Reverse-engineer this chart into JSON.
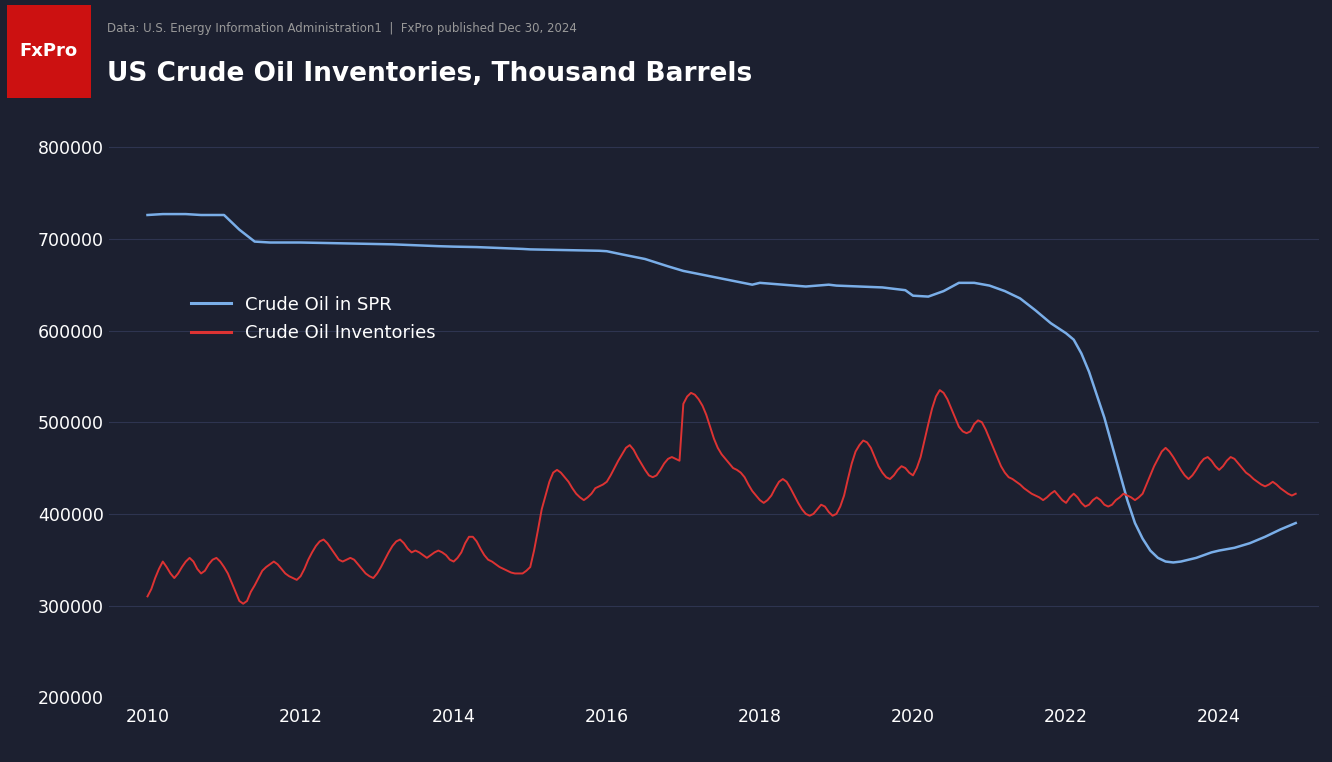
{
  "title": "US Crude Oil Inventories, Thousand Barrels",
  "subtitle": "Data: U.S. Energy Information Administration1  |  FxPro published Dec 30, 2024",
  "logo_text": "FxPro",
  "background_color": "#1c2030",
  "header_bg_color": "#252c3d",
  "logo_bg_color": "#cc1111",
  "text_color": "#ffffff",
  "subtitle_color": "#999999",
  "grid_color": "#2e3450",
  "spr_color": "#7aaee8",
  "inv_color": "#dd3333",
  "ylim": [
    200000,
    840000
  ],
  "yticks": [
    200000,
    300000,
    400000,
    500000,
    600000,
    700000,
    800000
  ],
  "xlim_start": 2009.5,
  "xlim_end": 2025.3,
  "xticks": [
    2010,
    2012,
    2014,
    2016,
    2018,
    2020,
    2022,
    2024
  ],
  "legend_spr": "Crude Oil in SPR",
  "legend_inv": "Crude Oil Inventories",
  "spr_data": [
    [
      2010.0,
      726000
    ],
    [
      2010.2,
      727000
    ],
    [
      2010.5,
      727000
    ],
    [
      2010.7,
      726000
    ],
    [
      2011.0,
      726000
    ],
    [
      2011.2,
      710000
    ],
    [
      2011.4,
      697000
    ],
    [
      2011.6,
      696000
    ],
    [
      2011.8,
      696000
    ],
    [
      2012.0,
      696000
    ],
    [
      2012.3,
      695500
    ],
    [
      2012.6,
      695000
    ],
    [
      2012.9,
      694500
    ],
    [
      2013.2,
      694000
    ],
    [
      2013.5,
      693000
    ],
    [
      2013.8,
      692000
    ],
    [
      2014.0,
      691500
    ],
    [
      2014.3,
      691000
    ],
    [
      2014.6,
      690000
    ],
    [
      2014.9,
      689000
    ],
    [
      2015.0,
      688500
    ],
    [
      2015.3,
      688000
    ],
    [
      2015.6,
      687500
    ],
    [
      2015.9,
      687000
    ],
    [
      2016.0,
      686500
    ],
    [
      2016.2,
      683000
    ],
    [
      2016.5,
      678000
    ],
    [
      2016.8,
      670000
    ],
    [
      2017.0,
      665000
    ],
    [
      2017.3,
      660000
    ],
    [
      2017.6,
      655000
    ],
    [
      2017.9,
      650000
    ],
    [
      2018.0,
      652000
    ],
    [
      2018.3,
      650000
    ],
    [
      2018.6,
      648000
    ],
    [
      2018.9,
      650000
    ],
    [
      2019.0,
      649000
    ],
    [
      2019.3,
      648000
    ],
    [
      2019.6,
      647000
    ],
    [
      2019.9,
      644000
    ],
    [
      2020.0,
      638000
    ],
    [
      2020.2,
      637000
    ],
    [
      2020.4,
      643000
    ],
    [
      2020.6,
      652000
    ],
    [
      2020.8,
      652000
    ],
    [
      2021.0,
      649000
    ],
    [
      2021.2,
      643000
    ],
    [
      2021.4,
      635000
    ],
    [
      2021.6,
      622000
    ],
    [
      2021.8,
      608000
    ],
    [
      2022.0,
      597000
    ],
    [
      2022.1,
      590000
    ],
    [
      2022.2,
      575000
    ],
    [
      2022.3,
      555000
    ],
    [
      2022.4,
      530000
    ],
    [
      2022.5,
      505000
    ],
    [
      2022.6,
      475000
    ],
    [
      2022.7,
      445000
    ],
    [
      2022.8,
      415000
    ],
    [
      2022.9,
      390000
    ],
    [
      2023.0,
      373000
    ],
    [
      2023.1,
      360000
    ],
    [
      2023.2,
      352000
    ],
    [
      2023.3,
      348000
    ],
    [
      2023.4,
      347000
    ],
    [
      2023.5,
      348000
    ],
    [
      2023.6,
      350000
    ],
    [
      2023.7,
      352000
    ],
    [
      2023.8,
      355000
    ],
    [
      2023.9,
      358000
    ],
    [
      2024.0,
      360000
    ],
    [
      2024.2,
      363000
    ],
    [
      2024.4,
      368000
    ],
    [
      2024.6,
      375000
    ],
    [
      2024.8,
      383000
    ],
    [
      2025.0,
      390000
    ]
  ],
  "inv_data": [
    [
      2010.0,
      310000
    ],
    [
      2010.05,
      318000
    ],
    [
      2010.1,
      330000
    ],
    [
      2010.15,
      340000
    ],
    [
      2010.2,
      348000
    ],
    [
      2010.25,
      342000
    ],
    [
      2010.3,
      335000
    ],
    [
      2010.35,
      330000
    ],
    [
      2010.4,
      335000
    ],
    [
      2010.45,
      342000
    ],
    [
      2010.5,
      348000
    ],
    [
      2010.55,
      352000
    ],
    [
      2010.6,
      348000
    ],
    [
      2010.65,
      340000
    ],
    [
      2010.7,
      335000
    ],
    [
      2010.75,
      338000
    ],
    [
      2010.8,
      345000
    ],
    [
      2010.85,
      350000
    ],
    [
      2010.9,
      352000
    ],
    [
      2010.95,
      348000
    ],
    [
      2011.0,
      342000
    ],
    [
      2011.05,
      335000
    ],
    [
      2011.1,
      325000
    ],
    [
      2011.15,
      315000
    ],
    [
      2011.2,
      305000
    ],
    [
      2011.25,
      302000
    ],
    [
      2011.3,
      305000
    ],
    [
      2011.35,
      315000
    ],
    [
      2011.4,
      322000
    ],
    [
      2011.45,
      330000
    ],
    [
      2011.5,
      338000
    ],
    [
      2011.55,
      342000
    ],
    [
      2011.6,
      345000
    ],
    [
      2011.65,
      348000
    ],
    [
      2011.7,
      345000
    ],
    [
      2011.75,
      340000
    ],
    [
      2011.8,
      335000
    ],
    [
      2011.85,
      332000
    ],
    [
      2011.9,
      330000
    ],
    [
      2011.95,
      328000
    ],
    [
      2012.0,
      332000
    ],
    [
      2012.05,
      340000
    ],
    [
      2012.1,
      350000
    ],
    [
      2012.15,
      358000
    ],
    [
      2012.2,
      365000
    ],
    [
      2012.25,
      370000
    ],
    [
      2012.3,
      372000
    ],
    [
      2012.35,
      368000
    ],
    [
      2012.4,
      362000
    ],
    [
      2012.45,
      356000
    ],
    [
      2012.5,
      350000
    ],
    [
      2012.55,
      348000
    ],
    [
      2012.6,
      350000
    ],
    [
      2012.65,
      352000
    ],
    [
      2012.7,
      350000
    ],
    [
      2012.75,
      345000
    ],
    [
      2012.8,
      340000
    ],
    [
      2012.85,
      335000
    ],
    [
      2012.9,
      332000
    ],
    [
      2012.95,
      330000
    ],
    [
      2013.0,
      335000
    ],
    [
      2013.05,
      342000
    ],
    [
      2013.1,
      350000
    ],
    [
      2013.15,
      358000
    ],
    [
      2013.2,
      365000
    ],
    [
      2013.25,
      370000
    ],
    [
      2013.3,
      372000
    ],
    [
      2013.35,
      368000
    ],
    [
      2013.4,
      362000
    ],
    [
      2013.45,
      358000
    ],
    [
      2013.5,
      360000
    ],
    [
      2013.55,
      358000
    ],
    [
      2013.6,
      355000
    ],
    [
      2013.65,
      352000
    ],
    [
      2013.7,
      355000
    ],
    [
      2013.75,
      358000
    ],
    [
      2013.8,
      360000
    ],
    [
      2013.85,
      358000
    ],
    [
      2013.9,
      355000
    ],
    [
      2013.95,
      350000
    ],
    [
      2014.0,
      348000
    ],
    [
      2014.05,
      352000
    ],
    [
      2014.1,
      358000
    ],
    [
      2014.15,
      368000
    ],
    [
      2014.2,
      375000
    ],
    [
      2014.25,
      375000
    ],
    [
      2014.3,
      370000
    ],
    [
      2014.35,
      362000
    ],
    [
      2014.4,
      355000
    ],
    [
      2014.45,
      350000
    ],
    [
      2014.5,
      348000
    ],
    [
      2014.55,
      345000
    ],
    [
      2014.6,
      342000
    ],
    [
      2014.65,
      340000
    ],
    [
      2014.7,
      338000
    ],
    [
      2014.75,
      336000
    ],
    [
      2014.8,
      335000
    ],
    [
      2014.85,
      335000
    ],
    [
      2014.9,
      335000
    ],
    [
      2014.95,
      338000
    ],
    [
      2015.0,
      342000
    ],
    [
      2015.05,
      360000
    ],
    [
      2015.1,
      382000
    ],
    [
      2015.15,
      405000
    ],
    [
      2015.2,
      420000
    ],
    [
      2015.25,
      435000
    ],
    [
      2015.3,
      445000
    ],
    [
      2015.35,
      448000
    ],
    [
      2015.4,
      445000
    ],
    [
      2015.45,
      440000
    ],
    [
      2015.5,
      435000
    ],
    [
      2015.55,
      428000
    ],
    [
      2015.6,
      422000
    ],
    [
      2015.65,
      418000
    ],
    [
      2015.7,
      415000
    ],
    [
      2015.75,
      418000
    ],
    [
      2015.8,
      422000
    ],
    [
      2015.85,
      428000
    ],
    [
      2015.9,
      430000
    ],
    [
      2015.95,
      432000
    ],
    [
      2016.0,
      435000
    ],
    [
      2016.05,
      442000
    ],
    [
      2016.1,
      450000
    ],
    [
      2016.15,
      458000
    ],
    [
      2016.2,
      465000
    ],
    [
      2016.25,
      472000
    ],
    [
      2016.3,
      475000
    ],
    [
      2016.35,
      470000
    ],
    [
      2016.4,
      462000
    ],
    [
      2016.45,
      455000
    ],
    [
      2016.5,
      448000
    ],
    [
      2016.55,
      442000
    ],
    [
      2016.6,
      440000
    ],
    [
      2016.65,
      442000
    ],
    [
      2016.7,
      448000
    ],
    [
      2016.75,
      455000
    ],
    [
      2016.8,
      460000
    ],
    [
      2016.85,
      462000
    ],
    [
      2016.9,
      460000
    ],
    [
      2016.95,
      458000
    ],
    [
      2017.0,
      520000
    ],
    [
      2017.05,
      528000
    ],
    [
      2017.1,
      532000
    ],
    [
      2017.15,
      530000
    ],
    [
      2017.2,
      525000
    ],
    [
      2017.25,
      518000
    ],
    [
      2017.3,
      508000
    ],
    [
      2017.35,
      495000
    ],
    [
      2017.4,
      482000
    ],
    [
      2017.45,
      472000
    ],
    [
      2017.5,
      465000
    ],
    [
      2017.55,
      460000
    ],
    [
      2017.6,
      455000
    ],
    [
      2017.65,
      450000
    ],
    [
      2017.7,
      448000
    ],
    [
      2017.75,
      445000
    ],
    [
      2017.8,
      440000
    ],
    [
      2017.85,
      432000
    ],
    [
      2017.9,
      425000
    ],
    [
      2017.95,
      420000
    ],
    [
      2018.0,
      415000
    ],
    [
      2018.05,
      412000
    ],
    [
      2018.1,
      415000
    ],
    [
      2018.15,
      420000
    ],
    [
      2018.2,
      428000
    ],
    [
      2018.25,
      435000
    ],
    [
      2018.3,
      438000
    ],
    [
      2018.35,
      435000
    ],
    [
      2018.4,
      428000
    ],
    [
      2018.45,
      420000
    ],
    [
      2018.5,
      412000
    ],
    [
      2018.55,
      405000
    ],
    [
      2018.6,
      400000
    ],
    [
      2018.65,
      398000
    ],
    [
      2018.7,
      400000
    ],
    [
      2018.75,
      405000
    ],
    [
      2018.8,
      410000
    ],
    [
      2018.85,
      408000
    ],
    [
      2018.9,
      402000
    ],
    [
      2018.95,
      398000
    ],
    [
      2019.0,
      400000
    ],
    [
      2019.05,
      408000
    ],
    [
      2019.1,
      420000
    ],
    [
      2019.15,
      438000
    ],
    [
      2019.2,
      455000
    ],
    [
      2019.25,
      468000
    ],
    [
      2019.3,
      475000
    ],
    [
      2019.35,
      480000
    ],
    [
      2019.4,
      478000
    ],
    [
      2019.45,
      472000
    ],
    [
      2019.5,
      462000
    ],
    [
      2019.55,
      452000
    ],
    [
      2019.6,
      445000
    ],
    [
      2019.65,
      440000
    ],
    [
      2019.7,
      438000
    ],
    [
      2019.75,
      442000
    ],
    [
      2019.8,
      448000
    ],
    [
      2019.85,
      452000
    ],
    [
      2019.9,
      450000
    ],
    [
      2019.95,
      445000
    ],
    [
      2020.0,
      442000
    ],
    [
      2020.05,
      450000
    ],
    [
      2020.1,
      462000
    ],
    [
      2020.15,
      480000
    ],
    [
      2020.2,
      498000
    ],
    [
      2020.25,
      515000
    ],
    [
      2020.3,
      528000
    ],
    [
      2020.35,
      535000
    ],
    [
      2020.4,
      532000
    ],
    [
      2020.45,
      525000
    ],
    [
      2020.5,
      515000
    ],
    [
      2020.55,
      505000
    ],
    [
      2020.6,
      495000
    ],
    [
      2020.65,
      490000
    ],
    [
      2020.7,
      488000
    ],
    [
      2020.75,
      490000
    ],
    [
      2020.8,
      498000
    ],
    [
      2020.85,
      502000
    ],
    [
      2020.9,
      500000
    ],
    [
      2020.95,
      492000
    ],
    [
      2021.0,
      482000
    ],
    [
      2021.05,
      472000
    ],
    [
      2021.1,
      462000
    ],
    [
      2021.15,
      452000
    ],
    [
      2021.2,
      445000
    ],
    [
      2021.25,
      440000
    ],
    [
      2021.3,
      438000
    ],
    [
      2021.35,
      435000
    ],
    [
      2021.4,
      432000
    ],
    [
      2021.45,
      428000
    ],
    [
      2021.5,
      425000
    ],
    [
      2021.55,
      422000
    ],
    [
      2021.6,
      420000
    ],
    [
      2021.65,
      418000
    ],
    [
      2021.7,
      415000
    ],
    [
      2021.75,
      418000
    ],
    [
      2021.8,
      422000
    ],
    [
      2021.85,
      425000
    ],
    [
      2021.9,
      420000
    ],
    [
      2021.95,
      415000
    ],
    [
      2022.0,
      412000
    ],
    [
      2022.05,
      418000
    ],
    [
      2022.1,
      422000
    ],
    [
      2022.15,
      418000
    ],
    [
      2022.2,
      412000
    ],
    [
      2022.25,
      408000
    ],
    [
      2022.3,
      410000
    ],
    [
      2022.35,
      415000
    ],
    [
      2022.4,
      418000
    ],
    [
      2022.45,
      415000
    ],
    [
      2022.5,
      410000
    ],
    [
      2022.55,
      408000
    ],
    [
      2022.6,
      410000
    ],
    [
      2022.65,
      415000
    ],
    [
      2022.7,
      418000
    ],
    [
      2022.75,
      422000
    ],
    [
      2022.8,
      420000
    ],
    [
      2022.85,
      418000
    ],
    [
      2022.9,
      415000
    ],
    [
      2022.95,
      418000
    ],
    [
      2023.0,
      422000
    ],
    [
      2023.05,
      432000
    ],
    [
      2023.1,
      442000
    ],
    [
      2023.15,
      452000
    ],
    [
      2023.2,
      460000
    ],
    [
      2023.25,
      468000
    ],
    [
      2023.3,
      472000
    ],
    [
      2023.35,
      468000
    ],
    [
      2023.4,
      462000
    ],
    [
      2023.45,
      455000
    ],
    [
      2023.5,
      448000
    ],
    [
      2023.55,
      442000
    ],
    [
      2023.6,
      438000
    ],
    [
      2023.65,
      442000
    ],
    [
      2023.7,
      448000
    ],
    [
      2023.75,
      455000
    ],
    [
      2023.8,
      460000
    ],
    [
      2023.85,
      462000
    ],
    [
      2023.9,
      458000
    ],
    [
      2023.95,
      452000
    ],
    [
      2024.0,
      448000
    ],
    [
      2024.05,
      452000
    ],
    [
      2024.1,
      458000
    ],
    [
      2024.15,
      462000
    ],
    [
      2024.2,
      460000
    ],
    [
      2024.25,
      455000
    ],
    [
      2024.3,
      450000
    ],
    [
      2024.35,
      445000
    ],
    [
      2024.4,
      442000
    ],
    [
      2024.45,
      438000
    ],
    [
      2024.5,
      435000
    ],
    [
      2024.55,
      432000
    ],
    [
      2024.6,
      430000
    ],
    [
      2024.65,
      432000
    ],
    [
      2024.7,
      435000
    ],
    [
      2024.75,
      432000
    ],
    [
      2024.8,
      428000
    ],
    [
      2024.85,
      425000
    ],
    [
      2024.9,
      422000
    ],
    [
      2024.95,
      420000
    ],
    [
      2025.0,
      422000
    ]
  ]
}
